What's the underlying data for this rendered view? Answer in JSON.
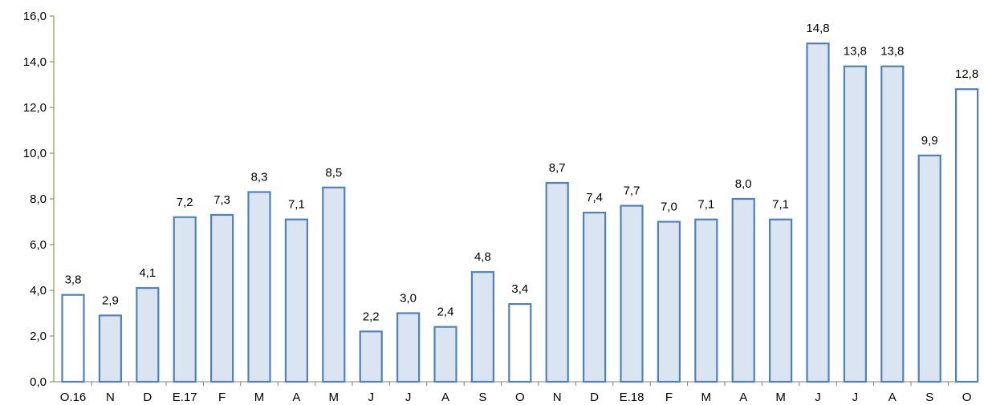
{
  "chart_data": {
    "type": "bar",
    "title": "",
    "xlabel": "",
    "ylabel": "",
    "ylim": [
      0,
      16
    ],
    "yticks": [
      0,
      2,
      4,
      6,
      8,
      10,
      12,
      14,
      16
    ],
    "ytick_labels": [
      "0,0",
      "2,0",
      "4,0",
      "6,0",
      "8,0",
      "10,0",
      "12,0",
      "14,0",
      "16,0"
    ],
    "grid": false,
    "legend": "none",
    "categories": [
      "O.16",
      "N",
      "D",
      "E.17",
      "F",
      "M",
      "A",
      "M",
      "J",
      "J",
      "A",
      "S",
      "O",
      "N",
      "D",
      "E.18",
      "F",
      "M",
      "A",
      "M",
      "J",
      "J",
      "A",
      "S",
      "O"
    ],
    "values": [
      3.8,
      2.9,
      4.1,
      7.2,
      7.3,
      8.3,
      7.1,
      8.5,
      2.2,
      3.0,
      2.4,
      4.8,
      3.4,
      8.7,
      7.4,
      7.7,
      7.0,
      7.1,
      8.0,
      7.1,
      14.8,
      13.8,
      13.8,
      9.9,
      12.8
    ],
    "value_labels": [
      "3,8",
      "2,9",
      "4,1",
      "7,2",
      "7,3",
      "8,3",
      "7,1",
      "8,5",
      "2,2",
      "3,0",
      "2,4",
      "4,8",
      "3,4",
      "8,7",
      "7,4",
      "7,7",
      "7,0",
      "7,1",
      "8,0",
      "7,1",
      "14,8",
      "13,8",
      "13,8",
      "9,9",
      "12,8"
    ],
    "highlighted": [
      true,
      false,
      false,
      false,
      false,
      false,
      false,
      false,
      false,
      false,
      false,
      false,
      true,
      false,
      false,
      false,
      false,
      false,
      false,
      false,
      false,
      false,
      false,
      false,
      true
    ],
    "colors": {
      "bar_fill": "#dbe5f1",
      "highlight_fill": "#ffffff",
      "bar_stroke": "#4f81bd",
      "axis": "#808080",
      "y_axis": "#70873a"
    }
  }
}
